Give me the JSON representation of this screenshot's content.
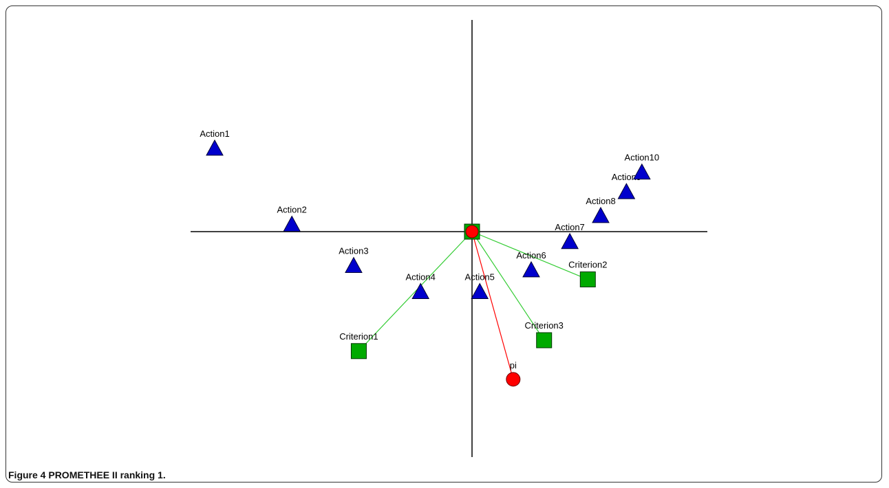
{
  "caption": {
    "label": "Figure 4",
    "text": "PROMETHEE II ranking 1."
  },
  "colors": {
    "action": "#0000cc",
    "criterion": "#00aa00",
    "pi": "#ff0000",
    "criterion_line": "#33cc33",
    "pi_line": "#ff0000",
    "axis": "#000000"
  },
  "chart_data": {
    "type": "scatter",
    "title": "",
    "xlabel": "",
    "ylabel": "",
    "xlim": [
      -1.0,
      1.0
    ],
    "ylim": [
      -1.0,
      0.8
    ],
    "grid": false,
    "series": [
      {
        "name": "",
        "marker": "triangle",
        "points": [
          {
            "label": "Action1",
            "x": -1.0,
            "y": 0.38
          },
          {
            "label": "Action2",
            "x": -0.7,
            "y": 0.03
          },
          {
            "label": "Action3",
            "x": -0.46,
            "y": -0.16
          },
          {
            "label": "Action4",
            "x": -0.2,
            "y": -0.28
          },
          {
            "label": "Action5",
            "x": 0.03,
            "y": -0.28
          },
          {
            "label": "Action6",
            "x": 0.23,
            "y": -0.18
          },
          {
            "label": "Action7",
            "x": 0.38,
            "y": -0.05
          },
          {
            "label": "Action8",
            "x": 0.5,
            "y": 0.07
          },
          {
            "label": "Action9",
            "x": 0.6,
            "y": 0.18
          },
          {
            "label": "Action10",
            "x": 0.66,
            "y": 0.27
          }
        ]
      },
      {
        "name": "",
        "marker": "square",
        "points": [
          {
            "label": "Criterion1",
            "x": -0.44,
            "y": -0.55
          },
          {
            "label": "Criterion2",
            "x": 0.45,
            "y": -0.22
          },
          {
            "label": "Criterion3",
            "x": 0.28,
            "y": -0.5
          }
        ]
      },
      {
        "name": "",
        "marker": "circle",
        "points": [
          {
            "label": "pi",
            "x": 0.16,
            "y": -0.68
          }
        ]
      }
    ],
    "origin_markers": [
      "square",
      "circle"
    ]
  }
}
